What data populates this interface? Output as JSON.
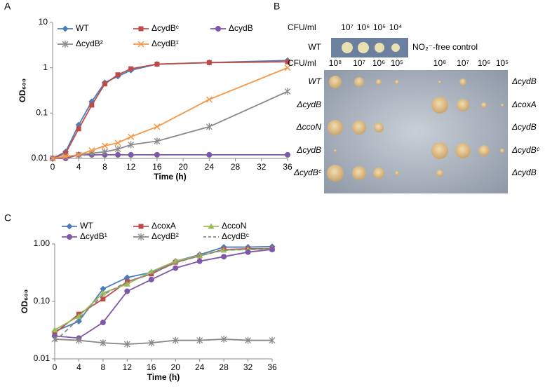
{
  "panel_labels": [
    "A",
    "B",
    "C"
  ],
  "chart_data": [
    {
      "type": "line",
      "log_y": true,
      "xlabel": "Time (h)",
      "ylabel": "OD₆₀₀",
      "x": [
        0,
        2,
        4,
        6,
        8,
        10,
        12,
        16,
        24,
        36
      ],
      "xlim": [
        0,
        36
      ],
      "xticks": [
        0,
        4,
        8,
        12,
        16,
        20,
        24,
        28,
        32,
        36
      ],
      "ylim": [
        0.01,
        10
      ],
      "yticks": [
        0.01,
        0.1,
        1,
        10
      ],
      "series": [
        {
          "name": "WT",
          "color": "#4a7ebb",
          "marker": "diamond",
          "values": [
            0.01,
            0.014,
            0.055,
            0.18,
            0.47,
            0.65,
            0.88,
            1.2,
            1.3,
            1.45
          ]
        },
        {
          "name": "ΔcydBᶜ",
          "color": "#be4b48",
          "marker": "square",
          "values": [
            0.01,
            0.013,
            0.045,
            0.15,
            0.44,
            0.7,
            0.95,
            1.2,
            1.3,
            1.35
          ]
        },
        {
          "name": "ΔcydB",
          "color": "#7e57a8",
          "marker": "circle",
          "values": [
            0.01,
            0.01,
            0.012,
            0.012,
            0.012,
            0.012,
            0.012,
            0.012,
            0.012,
            0.012
          ]
        },
        {
          "name": "ΔcydB²",
          "color": "#888888",
          "marker": "asterisk",
          "values": [
            0.01,
            0.011,
            0.012,
            0.013,
            0.014,
            0.016,
            0.02,
            0.024,
            0.05,
            0.3
          ]
        },
        {
          "name": "ΔcydB¹",
          "color": "#f79646",
          "marker": "x",
          "values": [
            0.01,
            0.011,
            0.012,
            0.015,
            0.019,
            0.022,
            0.03,
            0.05,
            0.2,
            1.0
          ]
        }
      ]
    },
    {
      "type": "line",
      "log_y": true,
      "xlabel": "Time (h)",
      "ylabel": "OD₆₀₀",
      "x": [
        0,
        4,
        8,
        12,
        16,
        20,
        24,
        28,
        32,
        36
      ],
      "xlim": [
        0,
        36
      ],
      "xticks": [
        0,
        4,
        8,
        12,
        16,
        20,
        24,
        28,
        32,
        36
      ],
      "ylim": [
        0.01,
        1
      ],
      "yticks": [
        {
          "value": 0.01,
          "label": "0.01"
        },
        {
          "value": 0.1,
          "label": "0.10"
        },
        {
          "value": 1,
          "label": "1.00"
        }
      ],
      "series": [
        {
          "name": "WT",
          "color": "#4a7ebb",
          "marker": "diamond",
          "values": [
            0.03,
            0.045,
            0.165,
            0.26,
            0.32,
            0.5,
            0.65,
            0.88,
            0.88,
            0.9
          ]
        },
        {
          "name": "ΔcoxA",
          "color": "#be4b48",
          "marker": "square",
          "values": [
            0.028,
            0.06,
            0.11,
            0.22,
            0.3,
            0.48,
            0.62,
            0.8,
            0.82,
            0.83
          ]
        },
        {
          "name": "ΔccoN",
          "color": "#9bbb59",
          "marker": "triangle",
          "values": [
            0.032,
            0.055,
            0.14,
            0.2,
            0.33,
            0.5,
            0.63,
            0.78,
            0.8,
            0.82
          ]
        },
        {
          "name": "ΔcydB¹",
          "color": "#7e57a8",
          "marker": "circle",
          "values": [
            0.025,
            0.023,
            0.043,
            0.15,
            0.24,
            0.38,
            0.5,
            0.6,
            0.72,
            0.8
          ]
        },
        {
          "name": "ΔcydB²",
          "color": "#888888",
          "marker": "asterisk",
          "values": [
            0.022,
            0.021,
            0.019,
            0.018,
            0.019,
            0.021,
            0.021,
            0.022,
            0.021,
            0.021
          ]
        },
        {
          "name": "ΔcydBᶜ",
          "color": "#888888",
          "marker": "none",
          "dashed": true,
          "values": [
            0.02,
            0.05,
            0.13,
            0.22,
            0.3,
            0.47,
            0.62,
            0.78,
            0.8,
            0.82
          ]
        }
      ]
    }
  ],
  "plate": {
    "header": "CFU/ml",
    "top_dilutions": [
      "10⁷",
      "10⁶",
      "10⁵",
      "10⁴"
    ],
    "top_strain": "WT",
    "control_label": "NO₂⁻-free control",
    "dilutions": [
      "10⁸",
      "10⁷",
      "10⁶",
      "10⁵"
    ],
    "left_strains": [
      "WT",
      "ΔcydB",
      "ΔccoN",
      "ΔcydB",
      "ΔcydBᶜ"
    ],
    "right_strains": [
      "ΔcydB",
      "ΔcoxA",
      "ΔcydB",
      "ΔcydBᶜ",
      "ΔcydB"
    ]
  }
}
